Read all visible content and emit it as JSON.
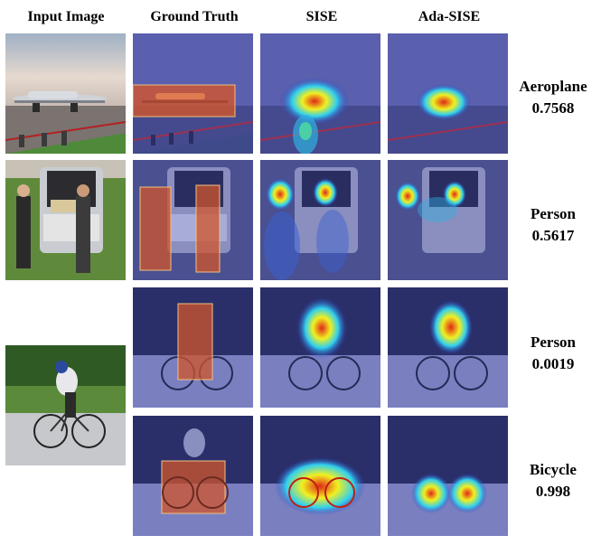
{
  "headers": {
    "input": "Input Image",
    "ground_truth": "Ground Truth",
    "sise": "SISE",
    "ada_sise": "Ada-SISE"
  },
  "rows": [
    {
      "class_name": "Aeroplane",
      "score": "0.7568"
    },
    {
      "class_name": "Person",
      "score": "0.5617"
    },
    {
      "class_name": "Person",
      "score": "0.0019"
    },
    {
      "class_name": "Bicycle",
      "score": "0.998"
    }
  ],
  "colors": {
    "overlay_blue": "#4c50c8",
    "bbox_fill": "#d2552c",
    "heat_red": "#e02818",
    "heat_yellow": "#f0f020",
    "heat_cyan": "#30d0f0"
  }
}
